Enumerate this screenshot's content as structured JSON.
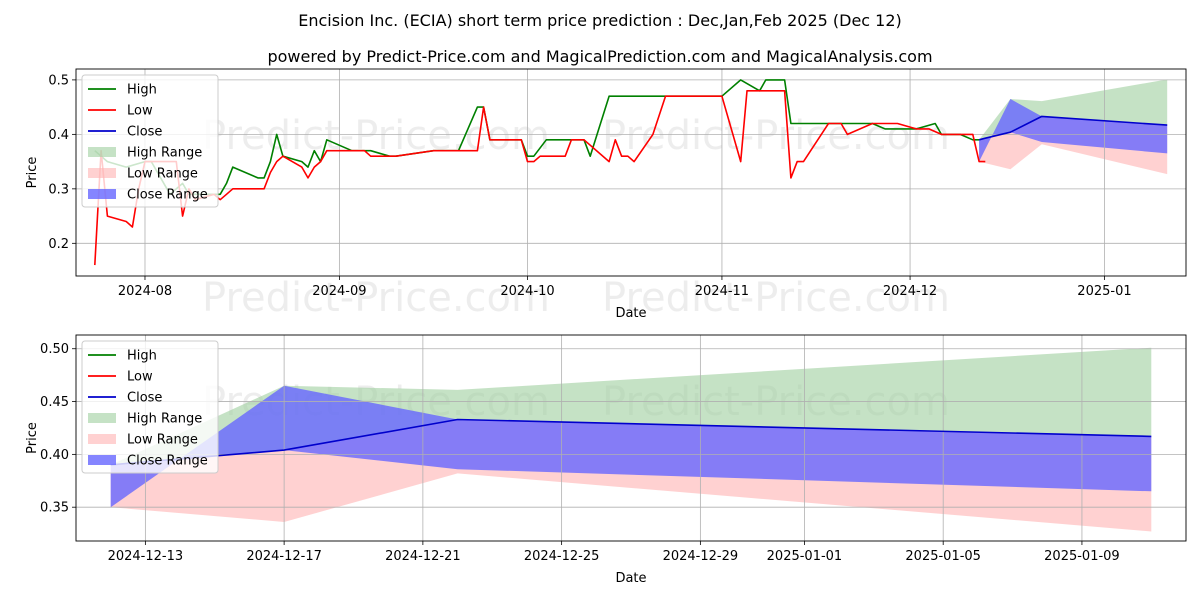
{
  "title_line1": "Encision Inc. (ECIA) short term price prediction : Dec,Jan,Feb 2025 (Dec 12)",
  "title_line2": "powered by Predict-Price.com and MagicalPrediction.com and MagicalAnalysis.com",
  "watermark": "Predict-Price.com",
  "colors": {
    "high": "#008000",
    "low": "#ff0000",
    "close": "#0000cc",
    "high_range": "#9fcf9f",
    "low_range": "#ffb3b3",
    "close_range": "#6666ff"
  },
  "chart_data": [
    {
      "type": "line",
      "xlabel": "Date",
      "ylabel": "Price",
      "xlim": [
        "2024-07-21",
        "2025-01-14"
      ],
      "ylim": [
        0.14,
        0.52
      ],
      "xticks": [
        "2024-08",
        "2024-09",
        "2024-10",
        "2024-11",
        "2024-12",
        "2025-01"
      ],
      "xtick_dates": [
        "2024-08-01",
        "2024-09-01",
        "2024-10-01",
        "2024-11-01",
        "2024-12-01",
        "2025-01-01"
      ],
      "yticks": [
        "0.2",
        "0.3",
        "0.4",
        "0.5"
      ],
      "ytick_values": [
        0.2,
        0.3,
        0.4,
        0.5
      ],
      "grid": true,
      "legend_position": "top-left",
      "legend": [
        "High",
        "Low",
        "Close",
        "High Range",
        "Low Range",
        "Close Range"
      ],
      "series": [
        {
          "name": "High",
          "points": [
            [
              "2024-07-24",
              0.37
            ],
            [
              "2024-07-26",
              0.35
            ],
            [
              "2024-07-29",
              0.34
            ],
            [
              "2024-08-01",
              0.35
            ],
            [
              "2024-08-02",
              0.35
            ],
            [
              "2024-08-05",
              0.29
            ],
            [
              "2024-08-06",
              0.3
            ],
            [
              "2024-08-07",
              0.31
            ],
            [
              "2024-08-08",
              0.29
            ],
            [
              "2024-08-13",
              0.29
            ],
            [
              "2024-08-14",
              0.31
            ],
            [
              "2024-08-15",
              0.34
            ],
            [
              "2024-08-19",
              0.32
            ],
            [
              "2024-08-20",
              0.32
            ],
            [
              "2024-08-21",
              0.35
            ],
            [
              "2024-08-22",
              0.4
            ],
            [
              "2024-08-23",
              0.36
            ],
            [
              "2024-08-26",
              0.35
            ],
            [
              "2024-08-27",
              0.34
            ],
            [
              "2024-08-28",
              0.37
            ],
            [
              "2024-08-29",
              0.35
            ],
            [
              "2024-08-30",
              0.39
            ],
            [
              "2024-09-03",
              0.37
            ],
            [
              "2024-09-05",
              0.37
            ],
            [
              "2024-09-06",
              0.37
            ],
            [
              "2024-09-09",
              0.36
            ],
            [
              "2024-09-10",
              0.36
            ],
            [
              "2024-09-16",
              0.37
            ],
            [
              "2024-09-20",
              0.37
            ],
            [
              "2024-09-23",
              0.45
            ],
            [
              "2024-09-24",
              0.45
            ],
            [
              "2024-09-25",
              0.39
            ],
            [
              "2024-09-30",
              0.39
            ],
            [
              "2024-10-01",
              0.36
            ],
            [
              "2024-10-02",
              0.36
            ],
            [
              "2024-10-04",
              0.39
            ],
            [
              "2024-10-10",
              0.39
            ],
            [
              "2024-10-11",
              0.36
            ],
            [
              "2024-10-14",
              0.47
            ],
            [
              "2024-10-17",
              0.47
            ],
            [
              "2024-10-24",
              0.47
            ],
            [
              "2024-10-31",
              0.47
            ],
            [
              "2024-11-01",
              0.47
            ],
            [
              "2024-11-04",
              0.5
            ],
            [
              "2024-11-07",
              0.48
            ],
            [
              "2024-11-08",
              0.5
            ],
            [
              "2024-11-11",
              0.5
            ],
            [
              "2024-11-12",
              0.42
            ],
            [
              "2024-11-15",
              0.42
            ],
            [
              "2024-11-19",
              0.42
            ],
            [
              "2024-11-22",
              0.42
            ],
            [
              "2024-11-25",
              0.42
            ],
            [
              "2024-11-27",
              0.41
            ],
            [
              "2024-12-02",
              0.41
            ],
            [
              "2024-12-05",
              0.42
            ],
            [
              "2024-12-06",
              0.4
            ],
            [
              "2024-12-09",
              0.4
            ],
            [
              "2024-12-11",
              0.39
            ],
            [
              "2024-12-12",
              0.39
            ]
          ]
        },
        {
          "name": "Low",
          "points": [
            [
              "2024-07-24",
              0.16
            ],
            [
              "2024-07-25",
              0.37
            ],
            [
              "2024-07-26",
              0.25
            ],
            [
              "2024-07-29",
              0.24
            ],
            [
              "2024-07-30",
              0.23
            ],
            [
              "2024-07-31",
              0.3
            ],
            [
              "2024-08-01",
              0.35
            ],
            [
              "2024-08-02",
              0.35
            ],
            [
              "2024-08-06",
              0.35
            ],
            [
              "2024-08-07",
              0.25
            ],
            [
              "2024-08-08",
              0.3
            ],
            [
              "2024-08-09",
              0.28
            ],
            [
              "2024-08-12",
              0.29
            ],
            [
              "2024-08-13",
              0.28
            ],
            [
              "2024-08-14",
              0.29
            ],
            [
              "2024-08-15",
              0.3
            ],
            [
              "2024-08-20",
              0.3
            ],
            [
              "2024-08-21",
              0.33
            ],
            [
              "2024-08-22",
              0.35
            ],
            [
              "2024-08-23",
              0.36
            ],
            [
              "2024-08-26",
              0.34
            ],
            [
              "2024-08-27",
              0.32
            ],
            [
              "2024-08-28",
              0.34
            ],
            [
              "2024-08-29",
              0.35
            ],
            [
              "2024-08-30",
              0.37
            ],
            [
              "2024-09-03",
              0.37
            ],
            [
              "2024-09-05",
              0.37
            ],
            [
              "2024-09-06",
              0.36
            ],
            [
              "2024-09-09",
              0.36
            ],
            [
              "2024-09-10",
              0.36
            ],
            [
              "2024-09-16",
              0.37
            ],
            [
              "2024-09-23",
              0.37
            ],
            [
              "2024-09-24",
              0.45
            ],
            [
              "2024-09-25",
              0.39
            ],
            [
              "2024-09-30",
              0.39
            ],
            [
              "2024-10-01",
              0.35
            ],
            [
              "2024-10-02",
              0.35
            ],
            [
              "2024-10-03",
              0.36
            ],
            [
              "2024-10-07",
              0.36
            ],
            [
              "2024-10-08",
              0.39
            ],
            [
              "2024-10-10",
              0.39
            ],
            [
              "2024-10-14",
              0.35
            ],
            [
              "2024-10-15",
              0.39
            ],
            [
              "2024-10-16",
              0.36
            ],
            [
              "2024-10-17",
              0.36
            ],
            [
              "2024-10-18",
              0.35
            ],
            [
              "2024-10-21",
              0.4
            ],
            [
              "2024-10-23",
              0.47
            ],
            [
              "2024-10-31",
              0.47
            ],
            [
              "2024-11-01",
              0.47
            ],
            [
              "2024-11-04",
              0.35
            ],
            [
              "2024-11-05",
              0.48
            ],
            [
              "2024-11-08",
              0.48
            ],
            [
              "2024-11-11",
              0.48
            ],
            [
              "2024-11-12",
              0.32
            ],
            [
              "2024-11-13",
              0.35
            ],
            [
              "2024-11-14",
              0.35
            ],
            [
              "2024-11-18",
              0.42
            ],
            [
              "2024-11-20",
              0.42
            ],
            [
              "2024-11-21",
              0.4
            ],
            [
              "2024-11-25",
              0.42
            ],
            [
              "2024-11-29",
              0.42
            ],
            [
              "2024-12-02",
              0.41
            ],
            [
              "2024-12-04",
              0.41
            ],
            [
              "2024-12-06",
              0.4
            ],
            [
              "2024-12-09",
              0.4
            ],
            [
              "2024-12-11",
              0.4
            ],
            [
              "2024-12-12",
              0.35
            ],
            [
              "2024-12-13",
              0.35
            ]
          ]
        },
        {
          "name": "Close",
          "points": [
            [
              "2024-12-12",
              0.39
            ],
            [
              "2024-12-13",
              0.393
            ],
            [
              "2024-12-17",
              0.404
            ],
            [
              "2024-12-22",
              0.433
            ],
            [
              "2025-01-11",
              0.417
            ]
          ]
        },
        {
          "name": "High Range",
          "upper": [
            [
              "2024-12-12",
              0.39
            ],
            [
              "2024-12-17",
              0.465
            ],
            [
              "2024-12-22",
              0.461
            ],
            [
              "2025-01-11",
              0.501
            ]
          ],
          "lower": [
            [
              "2024-12-12",
              0.39
            ],
            [
              "2024-12-17",
              0.404
            ],
            [
              "2024-12-22",
              0.433
            ],
            [
              "2025-01-11",
              0.417
            ]
          ]
        },
        {
          "name": "Low Range",
          "upper": [
            [
              "2024-12-12",
              0.39
            ],
            [
              "2024-12-17",
              0.404
            ],
            [
              "2024-12-22",
              0.433
            ],
            [
              "2025-01-11",
              0.417
            ]
          ],
          "lower": [
            [
              "2024-12-12",
              0.35
            ],
            [
              "2024-12-17",
              0.336
            ],
            [
              "2024-12-22",
              0.382
            ],
            [
              "2025-01-11",
              0.327
            ]
          ]
        },
        {
          "name": "Close Range",
          "upper": [
            [
              "2024-12-12",
              0.35
            ],
            [
              "2024-12-17",
              0.465
            ],
            [
              "2024-12-22",
              0.433
            ],
            [
              "2025-01-11",
              0.417
            ]
          ],
          "lower": [
            [
              "2024-12-12",
              0.39
            ],
            [
              "2024-12-17",
              0.404
            ],
            [
              "2024-12-22",
              0.386
            ],
            [
              "2025-01-11",
              0.365
            ]
          ]
        }
      ]
    },
    {
      "type": "line",
      "xlabel": "Date",
      "ylabel": "Price",
      "xlim": [
        "2024-12-11",
        "2025-01-12"
      ],
      "ylim": [
        0.318,
        0.513
      ],
      "xticks": [
        "2024-12-13",
        "2024-12-17",
        "2024-12-21",
        "2024-12-25",
        "2024-12-29",
        "2025-01-01",
        "2025-01-05",
        "2025-01-09"
      ],
      "yticks": [
        "0.35",
        "0.40",
        "0.45",
        "0.50"
      ],
      "ytick_values": [
        0.35,
        0.4,
        0.45,
        0.5
      ],
      "grid": true,
      "legend_position": "top-left",
      "legend": [
        "High",
        "Low",
        "Close",
        "High Range",
        "Low Range",
        "Close Range"
      ],
      "series": [
        {
          "name": "Close",
          "points": [
            [
              "2024-12-12",
              0.39
            ],
            [
              "2024-12-13",
              0.393
            ],
            [
              "2024-12-17",
              0.404
            ],
            [
              "2024-12-22",
              0.433
            ],
            [
              "2025-01-11",
              0.417
            ]
          ]
        },
        {
          "name": "High Range",
          "upper": [
            [
              "2024-12-12",
              0.39
            ],
            [
              "2024-12-17",
              0.465
            ],
            [
              "2024-12-22",
              0.461
            ],
            [
              "2025-01-11",
              0.501
            ]
          ],
          "lower": [
            [
              "2024-12-12",
              0.39
            ],
            [
              "2024-12-17",
              0.404
            ],
            [
              "2024-12-22",
              0.433
            ],
            [
              "2025-01-11",
              0.417
            ]
          ]
        },
        {
          "name": "Low Range",
          "upper": [
            [
              "2024-12-12",
              0.39
            ],
            [
              "2024-12-17",
              0.404
            ],
            [
              "2024-12-22",
              0.433
            ],
            [
              "2025-01-11",
              0.417
            ]
          ],
          "lower": [
            [
              "2024-12-12",
              0.35
            ],
            [
              "2024-12-17",
              0.336
            ],
            [
              "2024-12-22",
              0.382
            ],
            [
              "2025-01-11",
              0.327
            ]
          ]
        },
        {
          "name": "Close Range",
          "upper": [
            [
              "2024-12-12",
              0.35
            ],
            [
              "2024-12-17",
              0.465
            ],
            [
              "2024-12-22",
              0.433
            ],
            [
              "2025-01-11",
              0.417
            ]
          ],
          "lower": [
            [
              "2024-12-12",
              0.39
            ],
            [
              "2024-12-17",
              0.404
            ],
            [
              "2024-12-22",
              0.386
            ],
            [
              "2025-01-11",
              0.365
            ]
          ]
        }
      ]
    }
  ]
}
